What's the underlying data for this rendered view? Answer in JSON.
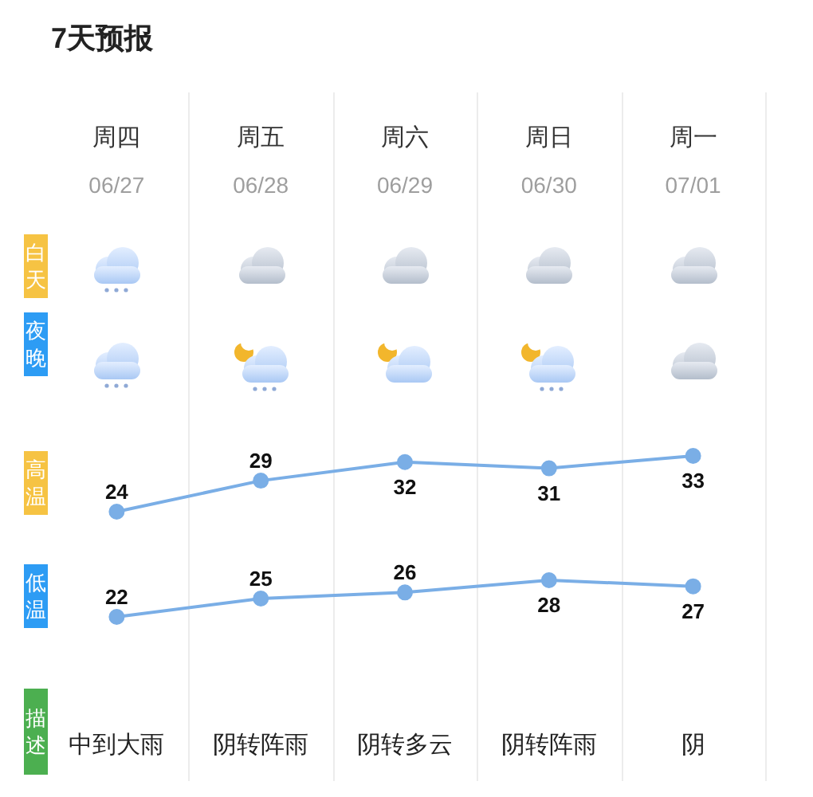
{
  "chart_data": [
    {
      "type": "line",
      "title": "7天预报",
      "categories": [
        "周四",
        "周五",
        "周六",
        "周日",
        "周一"
      ],
      "series": [
        {
          "name": "高温",
          "color": "#7aaee6",
          "values": [
            24,
            29,
            32,
            31,
            33
          ]
        }
      ],
      "tick_labels": "x",
      "data_labels": true,
      "marker": "circle",
      "line_style": "solid",
      "annotations": [
        "白天",
        "夜晚",
        "06/27",
        "06/28",
        "06/29",
        "06/30",
        "07/01"
      ]
    },
    {
      "type": "line",
      "categories": [
        null,
        null,
        null,
        null,
        null
      ],
      "series": [
        {
          "name": "低温",
          "color": "#7aaee6",
          "values": [
            22,
            25,
            26,
            28,
            27
          ]
        }
      ],
      "tick_labels": false,
      "data_labels": true,
      "marker": "circle",
      "line_style": "solid",
      "annotations": [
        "描述",
        "中到大雨",
        "阴转阵雨",
        "阴转多云",
        "阴转阵雨",
        "阴"
      ]
    }
  ]
}
